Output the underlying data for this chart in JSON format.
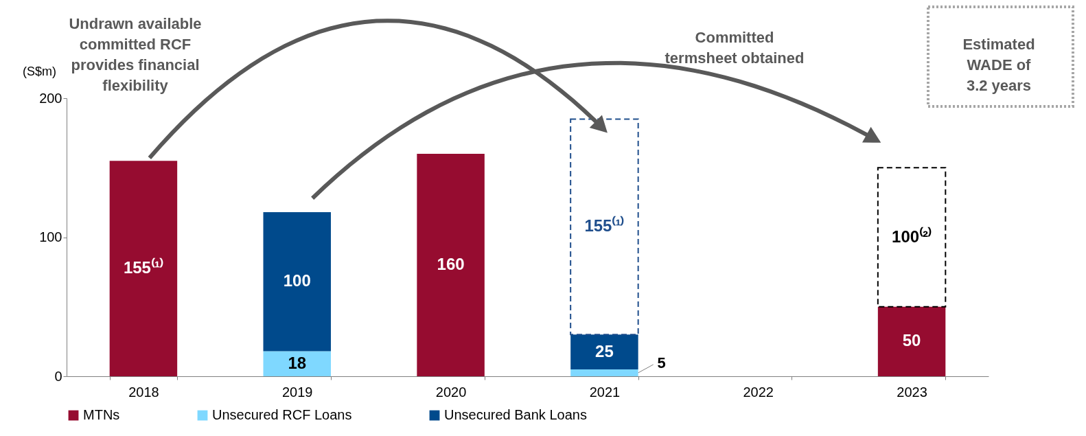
{
  "chart_data": {
    "type": "bar",
    "stacked": true,
    "categories": [
      "2018",
      "2019",
      "2020",
      "2021",
      "2022",
      "2023"
    ],
    "ylabel": "(S$m)",
    "ylim": [
      0,
      200
    ],
    "yticks": [
      0,
      100,
      200
    ],
    "legend": "bottom",
    "series": [
      {
        "name": "MTNs",
        "color": "#960c30",
        "values": [
          155,
          null,
          160,
          null,
          null,
          50
        ],
        "value_labels": [
          "155⁽¹⁾",
          null,
          "160",
          null,
          null,
          "50"
        ]
      },
      {
        "name": "Unsecured RCF Loans",
        "color": "#7fd8ff",
        "values": [
          null,
          18,
          null,
          5,
          null,
          null
        ],
        "value_labels": [
          null,
          "18",
          null,
          "5",
          null,
          null
        ]
      },
      {
        "name": "Unsecured Bank Loans",
        "color": "#004a8c",
        "values": [
          null,
          100,
          null,
          25,
          null,
          null
        ],
        "value_labels": [
          null,
          "100",
          null,
          "25",
          null,
          null
        ]
      },
      {
        "color": "#1f4e8c",
        "line_style": "dashed",
        "values": [
          null,
          null,
          null,
          155,
          null,
          null
        ],
        "value_labels": [
          null,
          null,
          null,
          "155⁽¹⁾",
          null,
          null
        ]
      },
      {
        "color": "#000000",
        "line_style": "dashed",
        "values": [
          null,
          null,
          null,
          null,
          null,
          100
        ],
        "value_labels": [
          null,
          null,
          null,
          null,
          null,
          "100⁽²⁾"
        ]
      }
    ],
    "annotations": [
      "Undrawn available committed RCF provides financial flexibility",
      "Committed termsheet obtained",
      "Estimated WADE of 3.2 years"
    ]
  }
}
